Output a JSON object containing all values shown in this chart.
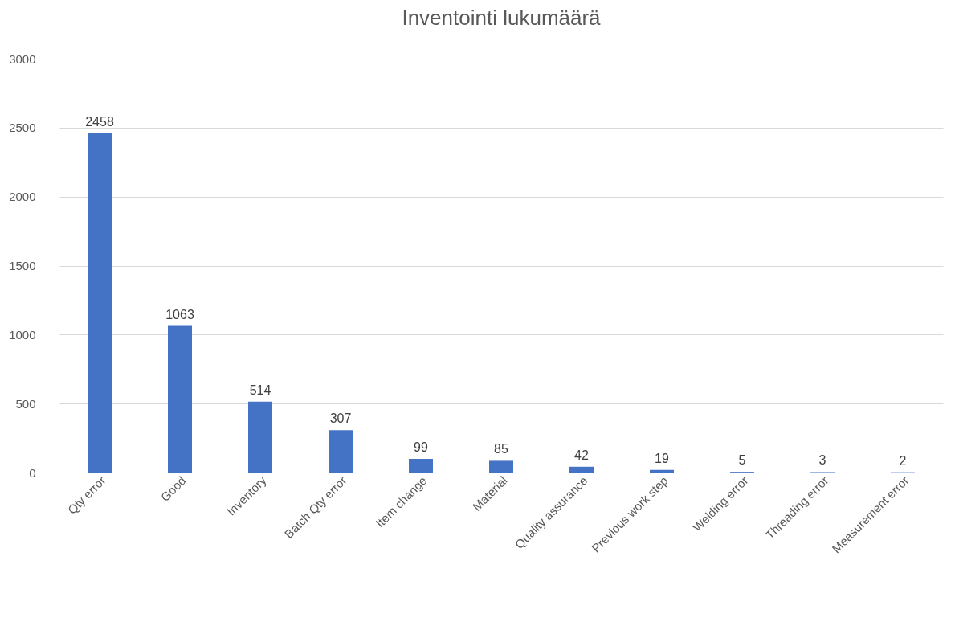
{
  "chart_data": {
    "type": "bar",
    "title": "Inventointi lukumäärä",
    "categories": [
      "Qty error",
      "Good",
      "Inventory",
      "Batch Qty error",
      "Item change",
      "Material",
      "Quality assurance",
      "Previous work step",
      "Welding error",
      "Threading error",
      "Measurement error"
    ],
    "values": [
      2458,
      1063,
      514,
      307,
      99,
      85,
      42,
      19,
      5,
      3,
      2
    ],
    "color": "#4472c4",
    "ylim": [
      0,
      3000
    ],
    "yticks": [
      0,
      500,
      1000,
      1500,
      2000,
      2500,
      3000
    ],
    "grid": "y",
    "data_labels": true
  }
}
